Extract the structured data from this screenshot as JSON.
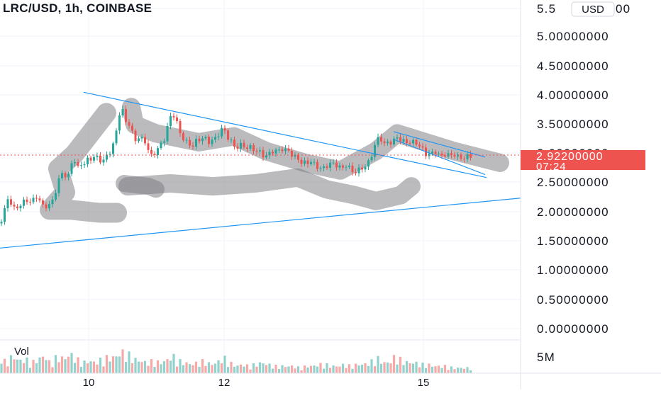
{
  "header": {
    "title": "LRC/USD, 1h, COINBASE"
  },
  "currency_button": {
    "label": "USD"
  },
  "price_label": {
    "price": "2.92200000",
    "countdown": "07:24"
  },
  "volume_label": {
    "label": "Vol",
    "axis_tick": "5M"
  },
  "colors": {
    "up": "#26a69a",
    "down": "#ef5350",
    "trendline": "#2196f3",
    "marker": "#9e9e9e",
    "grid": "#f0f3fa"
  },
  "chart_data": {
    "type": "candlestick",
    "title": "LRC/USD, 1h, COINBASE",
    "ylim": [
      -0.1,
      5.5
    ],
    "y_ticks": [
      "5.00000000",
      "4.50000000",
      "4.00000000",
      "3.50000000",
      "3.00000000",
      "2.50000000",
      "2.00000000",
      "1.50000000",
      "1.00000000",
      "0.50000000",
      "0.00000000"
    ],
    "x_ticks": [
      "10",
      "12",
      "15"
    ],
    "last_price": 2.922,
    "volume_axis_max_label": "5M",
    "price_path": [
      [
        0,
        1.82
      ],
      [
        4,
        1.95
      ],
      [
        9,
        2.15
      ],
      [
        13,
        2.3
      ],
      [
        17,
        2.1
      ],
      [
        22,
        2.05
      ],
      [
        27,
        2.12
      ],
      [
        31,
        2.17
      ],
      [
        36,
        2.2
      ],
      [
        40,
        2.21
      ],
      [
        45,
        2.18
      ],
      [
        49,
        2.25
      ],
      [
        54,
        2.3
      ],
      [
        58,
        2.12
      ],
      [
        63,
        2.1
      ],
      [
        67,
        2.13
      ],
      [
        72,
        2.14
      ],
      [
        77,
        2.3
      ],
      [
        81,
        2.5
      ],
      [
        86,
        2.65
      ],
      [
        90,
        2.7
      ],
      [
        95,
        2.55
      ],
      [
        99,
        2.75
      ],
      [
        104,
        3.0
      ],
      [
        108,
        2.7
      ],
      [
        113,
        2.85
      ],
      [
        117,
        2.8
      ],
      [
        122,
        2.9
      ],
      [
        126,
        2.9
      ],
      [
        131,
        2.95
      ],
      [
        135,
        2.95
      ],
      [
        140,
        2.92
      ],
      [
        144,
        2.85
      ],
      [
        149,
        2.95
      ],
      [
        153,
        3.0
      ],
      [
        158,
        3.1
      ],
      [
        162,
        3.25
      ],
      [
        167,
        3.6
      ],
      [
        171,
        3.85
      ],
      [
        176,
        3.55
      ],
      [
        180,
        3.55
      ],
      [
        185,
        3.45
      ],
      [
        189,
        3.2
      ],
      [
        194,
        3.3
      ],
      [
        198,
        3.25
      ],
      [
        203,
        3.25
      ],
      [
        207,
        3.15
      ],
      [
        212,
        2.95
      ],
      [
        216,
        3.0
      ],
      [
        221,
        3.05
      ],
      [
        225,
        3.15
      ],
      [
        230,
        3.2
      ],
      [
        234,
        3.35
      ],
      [
        239,
        3.6
      ],
      [
        243,
        3.7
      ],
      [
        248,
        3.6
      ],
      [
        252,
        3.4
      ],
      [
        257,
        3.3
      ],
      [
        261,
        3.2
      ],
      [
        266,
        3.2
      ],
      [
        270,
        3.1
      ],
      [
        275,
        3.2
      ],
      [
        279,
        3.25
      ],
      [
        284,
        3.25
      ],
      [
        288,
        3.3
      ],
      [
        293,
        3.2
      ],
      [
        297,
        3.22
      ],
      [
        302,
        3.25
      ],
      [
        306,
        3.3
      ],
      [
        311,
        3.4
      ],
      [
        315,
        3.45
      ],
      [
        320,
        3.3
      ],
      [
        324,
        3.25
      ],
      [
        329,
        3.15
      ],
      [
        333,
        3.1
      ],
      [
        338,
        3.15
      ],
      [
        342,
        3.15
      ],
      [
        347,
        3.1
      ],
      [
        351,
        3.12
      ],
      [
        356,
        3.1
      ],
      [
        360,
        3.05
      ],
      [
        365,
        3.05
      ],
      [
        369,
        3.0
      ],
      [
        374,
        2.95
      ],
      [
        379,
        3.0
      ],
      [
        383,
        3.05
      ],
      [
        388,
        3.05
      ],
      [
        392,
        3.05
      ],
      [
        397,
        3.1
      ],
      [
        401,
        3.05
      ],
      [
        406,
        3.08
      ],
      [
        410,
        3.0
      ],
      [
        415,
        2.95
      ],
      [
        419,
        2.95
      ],
      [
        424,
        2.85
      ],
      [
        428,
        2.85
      ],
      [
        433,
        2.85
      ],
      [
        437,
        2.88
      ],
      [
        442,
        2.84
      ],
      [
        446,
        2.8
      ],
      [
        451,
        2.75
      ],
      [
        455,
        2.75
      ],
      [
        460,
        2.8
      ],
      [
        464,
        2.82
      ],
      [
        469,
        2.85
      ],
      [
        473,
        2.82
      ],
      [
        478,
        2.78
      ],
      [
        482,
        2.75
      ],
      [
        487,
        2.82
      ],
      [
        491,
        2.78
      ],
      [
        496,
        2.72
      ],
      [
        500,
        2.68
      ],
      [
        505,
        2.72
      ],
      [
        509,
        2.76
      ],
      [
        514,
        2.78
      ],
      [
        518,
        2.82
      ],
      [
        523,
        2.95
      ],
      [
        527,
        3.1
      ],
      [
        532,
        3.25
      ],
      [
        536,
        3.3
      ],
      [
        541,
        3.15
      ],
      [
        545,
        3.2
      ],
      [
        550,
        3.2
      ],
      [
        554,
        3.2
      ],
      [
        559,
        3.3
      ],
      [
        563,
        3.25
      ],
      [
        568,
        3.22
      ],
      [
        572,
        3.2
      ],
      [
        577,
        3.2
      ],
      [
        581,
        3.2
      ],
      [
        586,
        3.2
      ],
      [
        590,
        3.15
      ],
      [
        595,
        3.1
      ],
      [
        599,
        3.0
      ],
      [
        604,
        3.0
      ],
      [
        608,
        3.0
      ],
      [
        613,
        3.05
      ],
      [
        617,
        3.0
      ],
      [
        622,
        2.95
      ],
      [
        626,
        3.0
      ],
      [
        631,
        2.98
      ],
      [
        635,
        2.98
      ],
      [
        640,
        3.0
      ],
      [
        644,
        2.96
      ],
      [
        649,
        2.94
      ],
      [
        653,
        2.92
      ],
      [
        658,
        2.95
      ],
      [
        662,
        2.98
      ],
      [
        667,
        2.92
      ]
    ],
    "volume_path": [
      [
        0,
        0.45
      ],
      [
        9,
        0.3
      ],
      [
        18,
        0.5
      ],
      [
        27,
        0.35
      ],
      [
        36,
        0.4
      ],
      [
        45,
        0.3
      ],
      [
        54,
        0.4
      ],
      [
        63,
        0.5
      ],
      [
        72,
        0.25
      ],
      [
        81,
        0.5
      ],
      [
        90,
        0.4
      ],
      [
        99,
        0.55
      ],
      [
        108,
        0.4
      ],
      [
        117,
        0.3
      ],
      [
        126,
        0.35
      ],
      [
        135,
        0.3
      ],
      [
        144,
        0.4
      ],
      [
        153,
        0.45
      ],
      [
        162,
        0.45
      ],
      [
        171,
        0.6
      ],
      [
        180,
        0.55
      ],
      [
        189,
        0.4
      ],
      [
        198,
        0.35
      ],
      [
        207,
        0.3
      ],
      [
        216,
        0.35
      ],
      [
        225,
        0.3
      ],
      [
        234,
        0.35
      ],
      [
        243,
        0.5
      ],
      [
        252,
        0.35
      ],
      [
        261,
        0.3
      ],
      [
        270,
        0.25
      ],
      [
        279,
        0.3
      ],
      [
        288,
        0.35
      ],
      [
        297,
        0.25
      ],
      [
        306,
        0.3
      ],
      [
        315,
        0.45
      ],
      [
        324,
        0.3
      ],
      [
        333,
        0.2
      ],
      [
        342,
        0.25
      ],
      [
        351,
        0.2
      ],
      [
        360,
        0.25
      ],
      [
        369,
        0.3
      ],
      [
        378,
        0.25
      ],
      [
        387,
        0.2
      ],
      [
        396,
        0.2
      ],
      [
        405,
        0.2
      ],
      [
        414,
        0.2
      ],
      [
        423,
        0.15
      ],
      [
        432,
        0.2
      ],
      [
        441,
        0.2
      ],
      [
        450,
        0.25
      ],
      [
        459,
        0.25
      ],
      [
        468,
        0.2
      ],
      [
        477,
        0.2
      ],
      [
        486,
        0.25
      ],
      [
        495,
        0.2
      ],
      [
        504,
        0.25
      ],
      [
        513,
        0.25
      ],
      [
        522,
        0.3
      ],
      [
        531,
        0.45
      ],
      [
        540,
        0.3
      ],
      [
        549,
        0.3
      ],
      [
        558,
        0.5
      ],
      [
        567,
        0.35
      ],
      [
        576,
        0.3
      ],
      [
        585,
        0.3
      ],
      [
        594,
        0.25
      ],
      [
        603,
        0.25
      ],
      [
        612,
        0.2
      ],
      [
        621,
        0.2
      ],
      [
        630,
        0.2
      ],
      [
        639,
        0.15
      ],
      [
        648,
        0.15
      ],
      [
        657,
        0.15
      ],
      [
        666,
        0.15
      ]
    ],
    "trendlines": [
      {
        "from": [
          118,
          4.05
        ],
        "to": [
          686,
          2.6
        ]
      },
      {
        "from": [
          0,
          1.4
        ],
        "to": [
          734,
          2.25
        ]
      },
      {
        "from": [
          555,
          3.38
        ],
        "to": [
          684,
          2.95
        ]
      },
      {
        "from": [
          555,
          3.25
        ],
        "to": [
          684,
          2.65
        ]
      }
    ],
    "markers": [
      {
        "points": [
          [
            150,
            3.7
          ],
          [
            105,
            3.0
          ],
          [
            82,
            2.75
          ],
          [
            92,
            2.35
          ],
          [
            70,
            2.05
          ],
          [
            100,
            2.05
          ],
          [
            140,
            2.0
          ],
          [
            165,
            2.0
          ]
        ],
        "width": 28
      },
      {
        "points": [
          [
            185,
            3.8
          ],
          [
            190,
            3.5
          ],
          [
            220,
            3.35
          ],
          [
            280,
            3.2
          ],
          [
            330,
            3.3
          ],
          [
            375,
            3.05
          ],
          [
            430,
            2.85
          ],
          [
            480,
            2.72
          ],
          [
            530,
            3.05
          ],
          [
            560,
            3.35
          ],
          [
            640,
            3.05
          ],
          [
            705,
            2.85
          ]
        ],
        "width": 26
      },
      {
        "points": [
          [
            175,
            2.5
          ],
          [
            210,
            2.45
          ],
          [
            220,
            2.4
          ]
        ],
        "width": 24
      },
      {
        "points": [
          [
            180,
            2.45
          ],
          [
            240,
            2.5
          ],
          [
            300,
            2.45
          ],
          [
            360,
            2.5
          ],
          [
            420,
            2.6
          ],
          [
            460,
            2.4
          ],
          [
            500,
            2.3
          ],
          [
            530,
            2.2
          ],
          [
            565,
            2.3
          ],
          [
            580,
            2.45
          ]
        ],
        "width": 26
      }
    ]
  }
}
